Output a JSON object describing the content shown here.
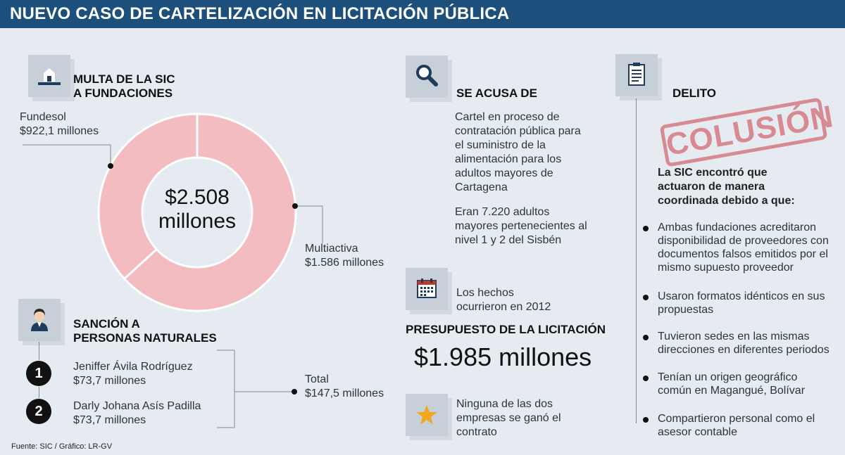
{
  "header": {
    "title": "NUEVO CASO DE CARTELIZACIÓN EN LICITACIÓN PÚBLICA"
  },
  "multa": {
    "icon": "house-icon",
    "title_line1": "MULTA DE LA SIC",
    "title_line2": "A FUNDACIONES",
    "total_line1": "$2.508",
    "total_line2": "millones",
    "slices": [
      {
        "name": "Fundesol",
        "value_label": "$922,1 millones",
        "value": 922.1
      },
      {
        "name": "Multiactiva",
        "value_label": "$1.586 millones",
        "value": 1586
      }
    ],
    "color": "#f2bcc0"
  },
  "sancion": {
    "icon": "person-icon",
    "title_line1": "SANCIÓN A",
    "title_line2": "PERSONAS NATURALES",
    "people": [
      {
        "num": "1",
        "name": "Jeniffer Ávila Rodríguez",
        "amount": "$73,7 millones"
      },
      {
        "num": "2",
        "name": "Darly Johana Asís Padilla",
        "amount": "$73,7 millones"
      }
    ],
    "total_label": "Total",
    "total_amount": "$147,5 millones"
  },
  "acusa": {
    "icon": "search-icon",
    "title": "SE ACUSA DE",
    "p1_lines": [
      "Cartel en proceso de",
      "contratación pública para",
      "el suministro de la",
      "alimentación para los",
      "adultos mayores de",
      "Cartagena"
    ],
    "p2_lines": [
      "Eran 7.220 adultos",
      "mayores pertenecientes al",
      "nivel 1 y 2 del Sisbén"
    ]
  },
  "hechos": {
    "icon": "calendar-icon",
    "line1": "Los hechos",
    "line2": "ocurrieron en 2012"
  },
  "presupuesto": {
    "title": "PRESUPUESTO DE LA LICITACIÓN",
    "amount": "$1.985 millones"
  },
  "ninguna": {
    "icon": "star-icon",
    "lines": [
      "Ninguna de las dos",
      "empresas se ganó el",
      "contrato"
    ]
  },
  "delito": {
    "icon": "clipboard-icon",
    "title": "DELITO",
    "stamp": "COLUSIÓN",
    "intro_lines": [
      "La SIC encontró que",
      "actuaron de manera",
      "coordinada debido a que:"
    ],
    "items": [
      [
        "Ambas fundaciones acreditaron",
        "disponibilidad de proveedores con",
        "documentos falsos emitidos por el",
        "mismo supuesto proveedor"
      ],
      [
        "Usaron formatos idénticos en sus",
        "propuestas"
      ],
      [
        "Tuvieron sedes en las mismas",
        "direcciones en diferentes periodos"
      ],
      [
        "Tenían un origen geográfico",
        "común en Magangué, Bolívar"
      ],
      [
        "Compartieron personal como el",
        "asesor contable"
      ]
    ]
  },
  "source": "Fuente: SIC / Gráfico: LR-GV"
}
